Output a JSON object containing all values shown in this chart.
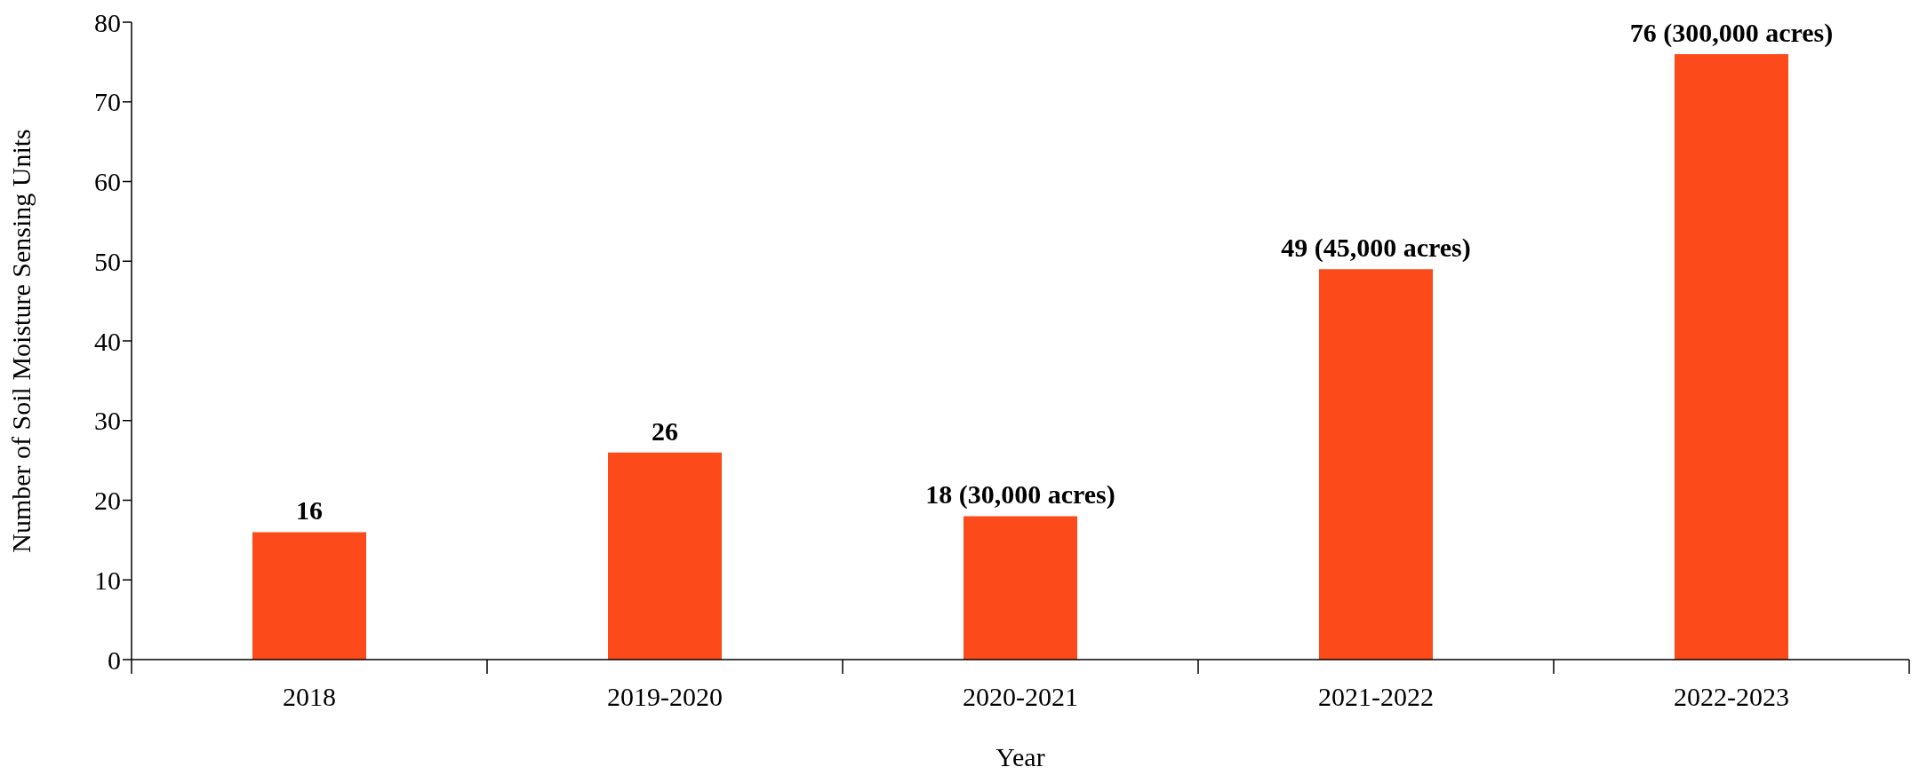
{
  "chart_data": {
    "type": "bar",
    "xlabel": "Year",
    "ylabel": "Number of Soil Moisture Sensing Units",
    "categories": [
      "2018",
      "2019-2020",
      "2020-2021",
      "2021-2022",
      "2022-2023"
    ],
    "values": [
      16,
      26,
      18,
      49,
      76
    ],
    "value_labels": [
      "16",
      "26",
      "18 (30,000 acres)",
      "49 (45,000 acres)",
      "76 (300,000 acres)"
    ],
    "color": "#fc4a1a",
    "ylim": [
      0,
      80
    ],
    "yticks": [
      0,
      10,
      20,
      30,
      40,
      50,
      60,
      70,
      80
    ],
    "grid": false,
    "legend": false
  }
}
